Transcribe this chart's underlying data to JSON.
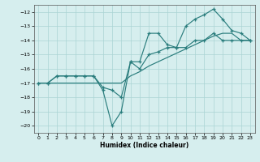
{
  "xlabel": "Humidex (Indice chaleur)",
  "x": [
    0,
    1,
    2,
    3,
    4,
    5,
    6,
    7,
    8,
    9,
    10,
    11,
    12,
    13,
    14,
    15,
    16,
    17,
    18,
    19,
    20,
    21,
    22,
    23
  ],
  "line_jagged": [
    -17,
    -17,
    -16.5,
    -16.5,
    -16.5,
    -16.5,
    -16.5,
    -17.5,
    -20,
    -19,
    -15.5,
    -15.5,
    -13.5,
    -13.5,
    -14.3,
    -14.5,
    -13.0,
    -12.5,
    -12.2,
    -11.8,
    -12.5,
    -13.3,
    -13.5,
    -14.0
  ],
  "line_straight": [
    -17,
    -17,
    -17,
    -17,
    -17,
    -17,
    -17,
    -17,
    -17,
    -17,
    -16.5,
    -16.2,
    -15.8,
    -15.5,
    -15.2,
    -14.9,
    -14.6,
    -14.3,
    -14.0,
    -13.7,
    -13.5,
    -13.5,
    -14.0,
    -14.0
  ],
  "line_mid": [
    -17,
    -17,
    -16.5,
    -16.5,
    -16.5,
    -16.5,
    -16.5,
    -17.3,
    -17.5,
    -18.0,
    -15.5,
    -16.0,
    -15.0,
    -14.8,
    -14.5,
    -14.5,
    -14.5,
    -14.0,
    -14.0,
    -13.5,
    -14.0,
    -14.0,
    -14.0,
    -14.0
  ],
  "color": "#2a7d7d",
  "bg_color": "#d6eeee",
  "grid_color": "#aad4d4",
  "xlim": [
    -0.5,
    23.5
  ],
  "ylim": [
    -20.5,
    -11.5
  ],
  "yticks": [
    -20,
    -19,
    -18,
    -17,
    -16,
    -15,
    -14,
    -13,
    -12
  ],
  "xticks": [
    0,
    1,
    2,
    3,
    4,
    5,
    6,
    7,
    8,
    9,
    10,
    11,
    12,
    13,
    14,
    15,
    16,
    17,
    18,
    19,
    20,
    21,
    22,
    23
  ]
}
